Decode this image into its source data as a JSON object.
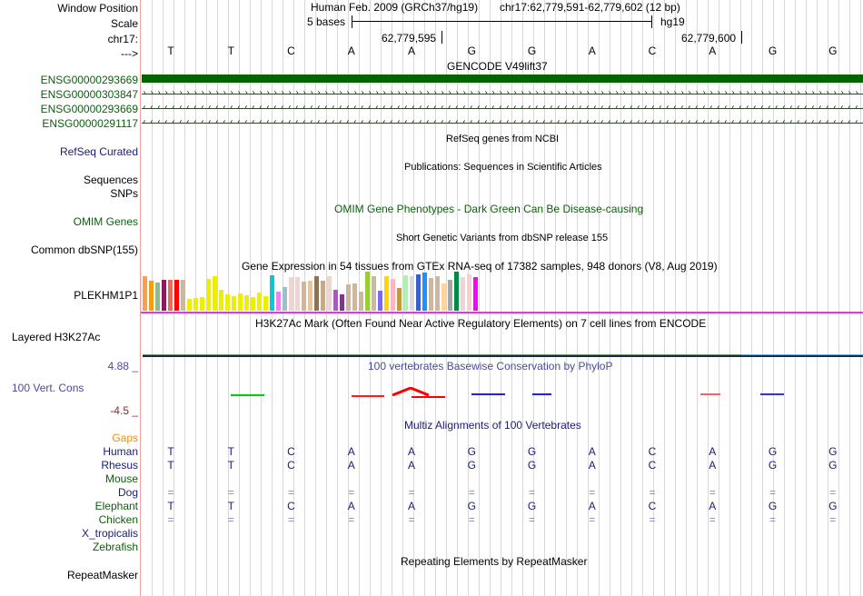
{
  "header": {
    "window_position_label": "Window Position",
    "scale_label": "Scale",
    "chrom_label": "chr17:",
    "strand_label": "--->",
    "assembly": "Human Feb. 2009 (GRCh37/hg19)",
    "position": "chr17:62,779,591-62,779,602 (12 bp)",
    "scale_text": "5 bases",
    "scale_db": "hg19",
    "tick1": "62,779,595",
    "tick2": "62,779,600"
  },
  "sequence": [
    "T",
    "T",
    "C",
    "A",
    "A",
    "G",
    "G",
    "A",
    "C",
    "A",
    "G",
    "G"
  ],
  "gencode": {
    "title": "GENCODE V49lift37",
    "rows": [
      {
        "label": "ENSG00000293669",
        "style": "solid"
      },
      {
        "label": "ENSG00000303847",
        "style": "forward"
      },
      {
        "label": "ENSG00000293669",
        "style": "reverse"
      },
      {
        "label": "ENSG00000291117",
        "style": "reverse"
      }
    ],
    "color": "#006400"
  },
  "tracks": {
    "refseq_label": "RefSeq Curated",
    "refseq_title": "RefSeq genes from NCBI",
    "pubs_title": "Publications: Sequences in Scientific Articles",
    "sequences_label": "Sequences",
    "snps_label": "SNPs",
    "omim_label": "OMIM Genes",
    "omim_title": "OMIM Gene Phenotypes - Dark Green Can Be Disease-causing",
    "dbsnp_label": "Common dbSNP(155)",
    "dbsnp_title": "Short Genetic Variants from dbSNP release 155",
    "gtex_title": "Gene Expression in 54 tissues from GTEx RNA-seq of 17382 samples, 948 donors (V8, Aug 2019)",
    "gtex_label": "PLEKHM1P1",
    "h3k27ac_title": "H3K27Ac Mark (Often Found Near Active Regulatory Elements) on 7 cell lines from ENCODE",
    "h3k27ac_label": "Layered H3K27Ac",
    "phylop_title": "100 vertebrates Basewise Conservation by PhyloP",
    "phylop_label": "100 Vert. Cons",
    "phylop_max": "4.88 _",
    "phylop_min": "-4.5 _",
    "multiz_title": "Multiz Alignments of 100 Vertebrates",
    "rmsk_title": "Repeating Elements by RepeatMasker",
    "rmsk_label": "RepeatMasker"
  },
  "gtex_bars": [
    {
      "v": 0.88,
      "c": "#f9a050"
    },
    {
      "v": 0.77,
      "c": "#f0a010"
    },
    {
      "v": 0.72,
      "c": "#8fbc8f"
    },
    {
      "v": 0.79,
      "c": "#8b1a5b"
    },
    {
      "v": 0.79,
      "c": "#ee6a50"
    },
    {
      "v": 0.79,
      "c": "#ff0000"
    },
    {
      "v": 0.79,
      "c": "#cdb79e"
    },
    {
      "v": 0.3,
      "c": "#eeee00"
    },
    {
      "v": 0.33,
      "c": "#eeee00"
    },
    {
      "v": 0.35,
      "c": "#eeee00"
    },
    {
      "v": 0.81,
      "c": "#eeee00"
    },
    {
      "v": 0.88,
      "c": "#eeee00"
    },
    {
      "v": 0.53,
      "c": "#eeee00"
    },
    {
      "v": 0.42,
      "c": "#eeee00"
    },
    {
      "v": 0.37,
      "c": "#eeee00"
    },
    {
      "v": 0.44,
      "c": "#eeee00"
    },
    {
      "v": 0.4,
      "c": "#eeee00"
    },
    {
      "v": 0.35,
      "c": "#eeee00"
    },
    {
      "v": 0.47,
      "c": "#eeee00"
    },
    {
      "v": 0.37,
      "c": "#eeee00"
    },
    {
      "v": 0.91,
      "c": "#00ced1"
    },
    {
      "v": 0.49,
      "c": "#ee82ee"
    },
    {
      "v": 0.6,
      "c": "#9ac0cd"
    },
    {
      "v": 0.86,
      "c": "#eed5d2"
    },
    {
      "v": 0.86,
      "c": "#eed5d2"
    },
    {
      "v": 0.74,
      "c": "#cdb79e"
    },
    {
      "v": 0.77,
      "c": "#eec591"
    },
    {
      "v": 0.88,
      "c": "#8b7355"
    },
    {
      "v": 0.77,
      "c": "#cdaa7d"
    },
    {
      "v": 0.88,
      "c": "#eed5d2"
    },
    {
      "v": 0.53,
      "c": "#b452cd"
    },
    {
      "v": 0.42,
      "c": "#7a378b"
    },
    {
      "v": 0.67,
      "c": "#cdb79e"
    },
    {
      "v": 0.7,
      "c": "#cdb79e"
    },
    {
      "v": 0.49,
      "c": "#cdb79e"
    },
    {
      "v": 1.0,
      "c": "#9acd32"
    },
    {
      "v": 0.88,
      "c": "#cdb79e"
    },
    {
      "v": 0.51,
      "c": "#7b68ee"
    },
    {
      "v": 0.88,
      "c": "#ffd700"
    },
    {
      "v": 0.81,
      "c": "#ffb6c1"
    },
    {
      "v": 0.58,
      "c": "#cd9b1d"
    },
    {
      "v": 0.91,
      "c": "#b4eeb4"
    },
    {
      "v": 0.88,
      "c": "#d9d9d9"
    },
    {
      "v": 0.93,
      "c": "#3a5fcd"
    },
    {
      "v": 0.98,
      "c": "#1e90ff"
    },
    {
      "v": 0.84,
      "c": "#cdb79e"
    },
    {
      "v": 0.88,
      "c": "#cdb79e"
    },
    {
      "v": 0.7,
      "c": "#ffd39b"
    },
    {
      "v": 0.79,
      "c": "#a6a6a6"
    },
    {
      "v": 1.0,
      "c": "#008b45"
    },
    {
      "v": 0.86,
      "c": "#eed5d2"
    },
    {
      "v": 0.93,
      "c": "#eed5d2"
    },
    {
      "v": 0.86,
      "c": "#ff00ff"
    },
    {
      "v": 0.0,
      "c": "#ffffff"
    }
  ],
  "phylop_segments": [
    {
      "base": 1.5,
      "span": 1.0,
      "value": 0.0,
      "color": "#00cc00"
    },
    {
      "base": 3.5,
      "span": 1.0,
      "value": -0.3,
      "color": "#ee2222"
    },
    {
      "base": 4.5,
      "span": 1.0,
      "value": -0.6,
      "color": "#ff0000"
    },
    {
      "base": 5.5,
      "span": 1.0,
      "value": 0.2,
      "color": "#2222dd"
    },
    {
      "base": 6.5,
      "span": 0.6,
      "value": 0.2,
      "color": "#2222dd"
    },
    {
      "base": 9.3,
      "span": 0.6,
      "value": 0.2,
      "color": "#ee6666"
    },
    {
      "base": 10.3,
      "span": 0.7,
      "value": 0.2,
      "color": "#3333dd"
    }
  ],
  "multiz": {
    "gaps_label": "Gaps",
    "species": [
      {
        "name": "Human",
        "color": "navy",
        "row": [
          "T",
          "T",
          "C",
          "A",
          "A",
          "G",
          "G",
          "A",
          "C",
          "A",
          "G",
          "G"
        ]
      },
      {
        "name": "Rhesus",
        "color": "navy",
        "row": [
          "T",
          "T",
          "C",
          "A",
          "A",
          "G",
          "G",
          "A",
          "C",
          "A",
          "G",
          "G"
        ]
      },
      {
        "name": "Mouse",
        "color": "green",
        "row": []
      },
      {
        "name": "Dog",
        "color": "navy",
        "row": [
          "=",
          "=",
          "=",
          "=",
          "=",
          "=",
          "=",
          "=",
          "=",
          "=",
          "=",
          "="
        ]
      },
      {
        "name": "Elephant",
        "color": "green",
        "row": [
          "T",
          "T",
          "C",
          "A",
          "A",
          "G",
          "G",
          "A",
          "C",
          "A",
          "G",
          "G"
        ]
      },
      {
        "name": "Chicken",
        "color": "green",
        "row": [
          "=",
          "=",
          "=",
          "=",
          "=",
          "=",
          "=",
          "=",
          "=",
          "=",
          "=",
          "="
        ]
      },
      {
        "name": "X_tropicalis",
        "color": "navy",
        "row": []
      },
      {
        "name": "Zebrafish",
        "color": "green",
        "row": []
      }
    ]
  }
}
